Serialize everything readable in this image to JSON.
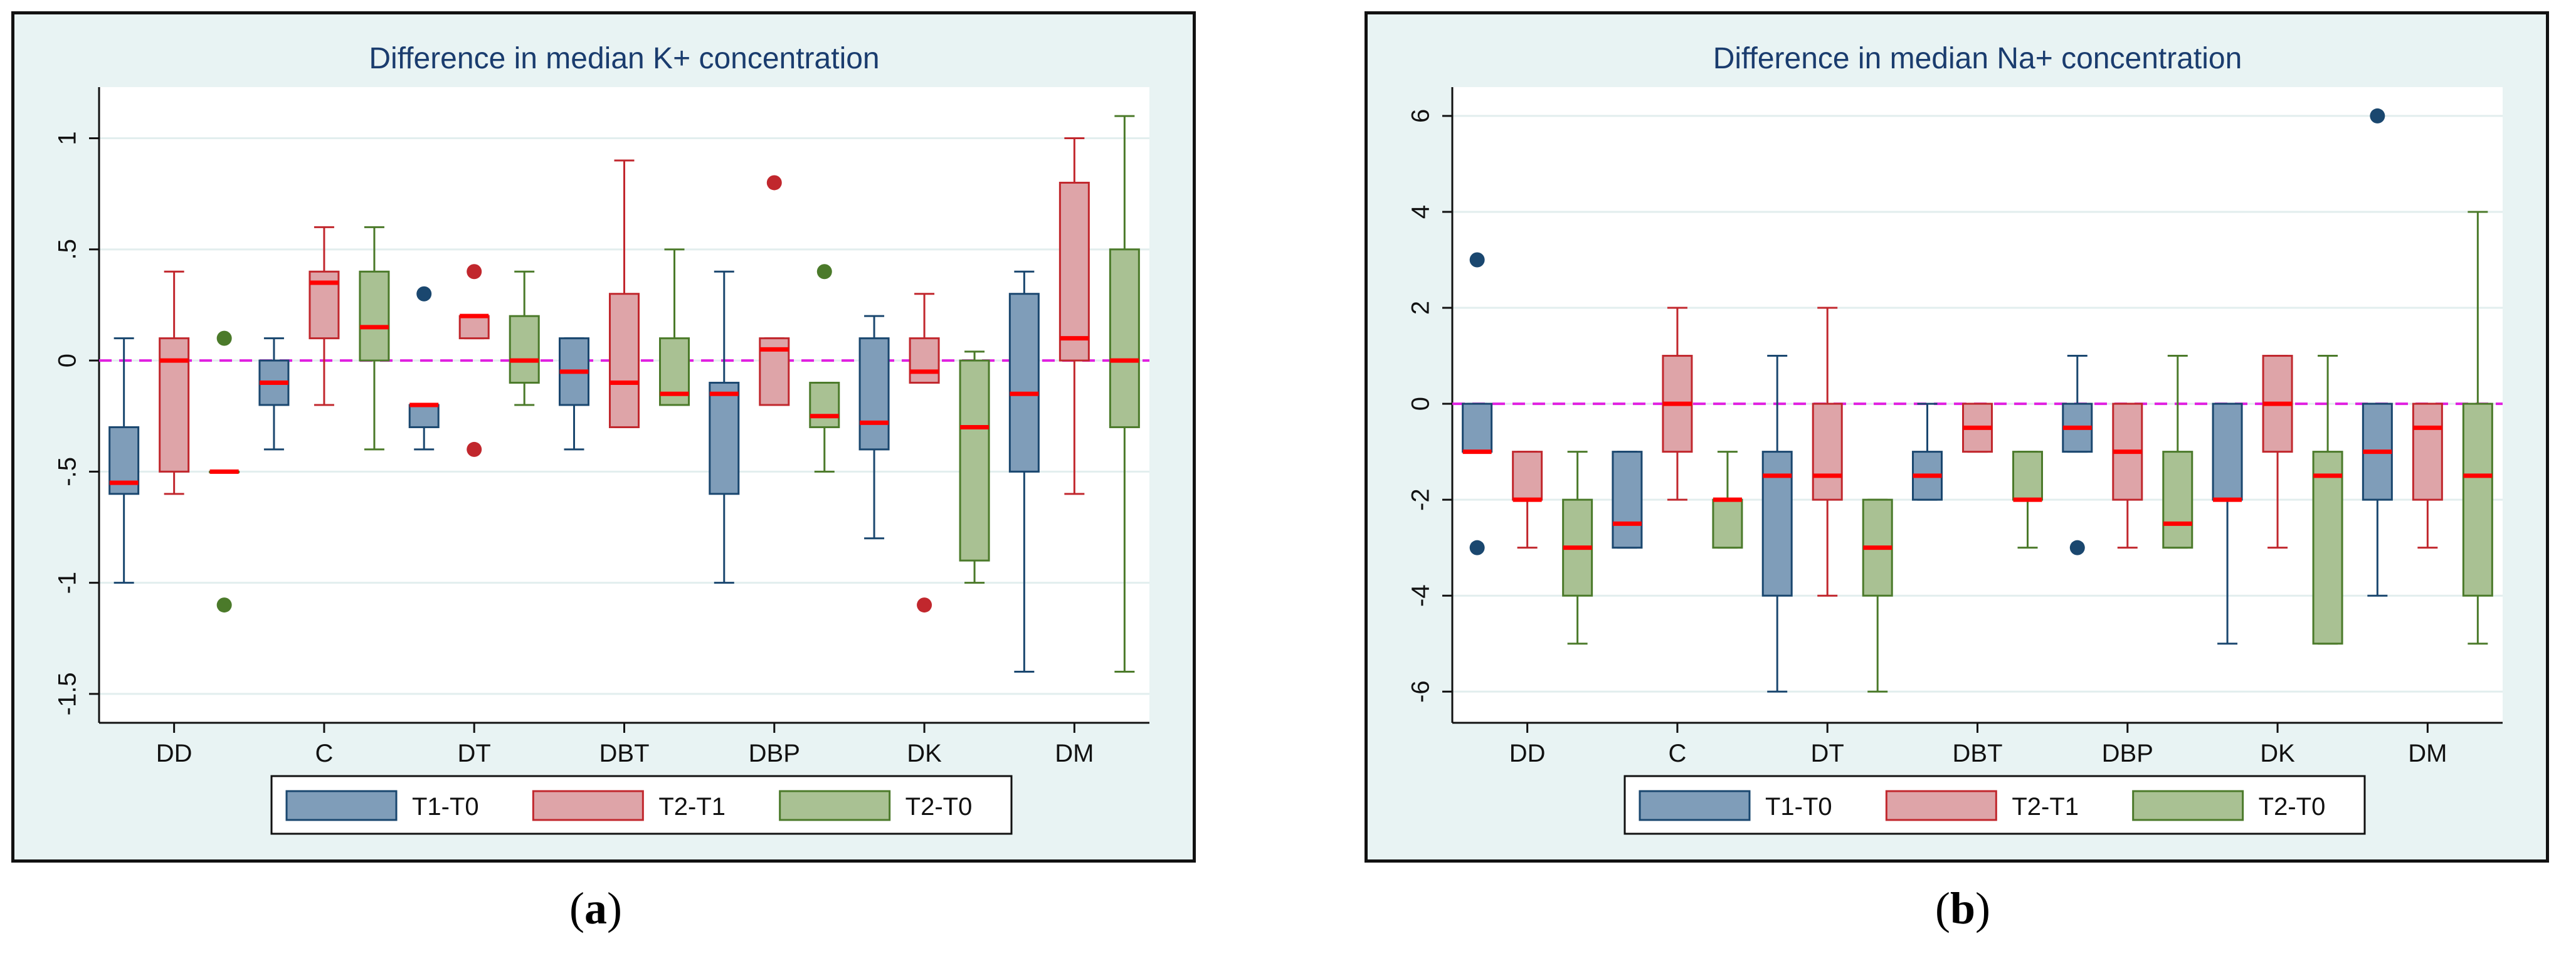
{
  "colors": {
    "T1-T0": {
      "fill": "#7f9db9",
      "stroke": "#1a476f"
    },
    "T2-T1": {
      "fill": "#dea4a8",
      "stroke": "#c1272d"
    },
    "T2-T0": {
      "fill": "#a9c193",
      "stroke": "#4b7a2a"
    },
    "median": "#ff0000",
    "zero_line": "#e020e0"
  },
  "captions": {
    "a": {
      "open": "(",
      "letter": "a",
      "close": ")"
    },
    "b": {
      "open": "(",
      "letter": "b",
      "close": ")"
    }
  },
  "chart_data": [
    {
      "type": "box",
      "title": "Difference in median K+ concentration",
      "categories": [
        "DD",
        "C",
        "DT",
        "DBT",
        "DBP",
        "DK",
        "DM"
      ],
      "ylim": [
        -1.63,
        1.23
      ],
      "yticks": [
        1,
        0.5,
        0,
        -0.5,
        -1,
        -1.5
      ],
      "ytick_labels": [
        "1",
        ".5",
        "0",
        "-.5",
        "-1",
        "-1.5"
      ],
      "reference_line": 0,
      "legend": [
        "T1-T0",
        "T2-T1",
        "T2-T0"
      ],
      "series": [
        {
          "name": "T1-T0",
          "boxes": [
            {
              "q1": -0.6,
              "med": -0.55,
              "q3": -0.3,
              "lo": -1.0,
              "hi": 0.1,
              "outliers": []
            },
            {
              "q1": -0.2,
              "med": -0.1,
              "q3": 0.0,
              "lo": -0.4,
              "hi": 0.1,
              "outliers": []
            },
            {
              "q1": -0.3,
              "med": -0.2,
              "q3": -0.2,
              "lo": -0.4,
              "hi": -0.2,
              "outliers": [
                0.3
              ]
            },
            {
              "q1": -0.2,
              "med": -0.05,
              "q3": 0.1,
              "lo": -0.4,
              "hi": 0.1,
              "outliers": []
            },
            {
              "q1": -0.6,
              "med": -0.15,
              "q3": -0.1,
              "lo": -1.0,
              "hi": 0.4,
              "outliers": []
            },
            {
              "q1": -0.4,
              "med": -0.28,
              "q3": 0.1,
              "lo": -0.8,
              "hi": 0.2,
              "outliers": []
            },
            {
              "q1": -0.5,
              "med": -0.15,
              "q3": 0.3,
              "lo": -1.4,
              "hi": 0.4,
              "outliers": []
            }
          ]
        },
        {
          "name": "T2-T1",
          "boxes": [
            {
              "q1": -0.5,
              "med": 0.0,
              "q3": 0.1,
              "lo": -0.6,
              "hi": 0.4,
              "outliers": []
            },
            {
              "q1": 0.1,
              "med": 0.35,
              "q3": 0.4,
              "lo": -0.2,
              "hi": 0.6,
              "outliers": []
            },
            {
              "q1": 0.1,
              "med": 0.2,
              "q3": 0.2,
              "lo": 0.1,
              "hi": 0.2,
              "outliers": [
                0.4,
                -0.4
              ]
            },
            {
              "q1": -0.3,
              "med": -0.1,
              "q3": 0.3,
              "lo": -0.3,
              "hi": 0.9,
              "outliers": []
            },
            {
              "q1": -0.2,
              "med": 0.05,
              "q3": 0.1,
              "lo": -0.2,
              "hi": 0.1,
              "outliers": [
                0.8
              ]
            },
            {
              "q1": -0.1,
              "med": -0.05,
              "q3": 0.1,
              "lo": -0.1,
              "hi": 0.3,
              "outliers": [
                -1.1
              ]
            },
            {
              "q1": 0.0,
              "med": 0.1,
              "q3": 0.8,
              "lo": -0.6,
              "hi": 1.0,
              "outliers": []
            }
          ]
        },
        {
          "name": "T2-T0",
          "boxes": [
            {
              "q1": -0.5,
              "med": -0.5,
              "q3": -0.5,
              "lo": -0.5,
              "hi": -0.5,
              "outliers": [
                0.1,
                -1.1
              ]
            },
            {
              "q1": 0.0,
              "med": 0.15,
              "q3": 0.4,
              "lo": -0.4,
              "hi": 0.6,
              "outliers": []
            },
            {
              "q1": -0.1,
              "med": 0.0,
              "q3": 0.2,
              "lo": -0.2,
              "hi": 0.4,
              "outliers": []
            },
            {
              "q1": -0.2,
              "med": -0.15,
              "q3": 0.1,
              "lo": -0.2,
              "hi": 0.5,
              "outliers": []
            },
            {
              "q1": -0.3,
              "med": -0.25,
              "q3": -0.1,
              "lo": -0.5,
              "hi": -0.1,
              "outliers": [
                0.4
              ]
            },
            {
              "q1": -0.9,
              "med": -0.3,
              "q3": 0.0,
              "lo": -1.0,
              "hi": 0.04,
              "outliers": []
            },
            {
              "q1": -0.3,
              "med": 0.0,
              "q3": 0.5,
              "lo": -1.4,
              "hi": 1.1,
              "outliers": []
            }
          ]
        }
      ]
    },
    {
      "type": "box",
      "title": "Difference in median Na+ concentration",
      "categories": [
        "DD",
        "C",
        "DT",
        "DBT",
        "DBP",
        "DK",
        "DM"
      ],
      "ylim": [
        -6.65,
        6.6
      ],
      "yticks": [
        6,
        4,
        2,
        0,
        -2,
        -4,
        -6
      ],
      "ytick_labels": [
        "6",
        "4",
        "2",
        "0",
        "-2",
        "-4",
        "-6"
      ],
      "reference_line": 0,
      "legend": [
        "T1-T0",
        "T2-T1",
        "T2-T0"
      ],
      "series": [
        {
          "name": "T1-T0",
          "boxes": [
            {
              "q1": -1,
              "med": -1,
              "q3": 0,
              "lo": -1,
              "hi": 0,
              "outliers": [
                3,
                -3
              ]
            },
            {
              "q1": -3,
              "med": -2.5,
              "q3": -1,
              "lo": -3,
              "hi": -1,
              "outliers": []
            },
            {
              "q1": -4,
              "med": -1.5,
              "q3": -1,
              "lo": -6,
              "hi": 1,
              "outliers": []
            },
            {
              "q1": -2,
              "med": -1.5,
              "q3": -1,
              "lo": -2,
              "hi": 0,
              "outliers": []
            },
            {
              "q1": -1,
              "med": -0.5,
              "q3": 0,
              "lo": -1,
              "hi": 1,
              "outliers": [
                -3
              ]
            },
            {
              "q1": -2,
              "med": -2,
              "q3": 0,
              "lo": -5,
              "hi": 0,
              "outliers": []
            },
            {
              "q1": -2,
              "med": -1,
              "q3": 0,
              "lo": -4,
              "hi": 0,
              "outliers": [
                6
              ]
            }
          ]
        },
        {
          "name": "T2-T1",
          "boxes": [
            {
              "q1": -2,
              "med": -2,
              "q3": -1,
              "lo": -3,
              "hi": -1,
              "outliers": []
            },
            {
              "q1": -1,
              "med": 0,
              "q3": 1,
              "lo": -2,
              "hi": 2,
              "outliers": []
            },
            {
              "q1": -2,
              "med": -1.5,
              "q3": 0,
              "lo": -4,
              "hi": 2,
              "outliers": []
            },
            {
              "q1": -1,
              "med": -0.5,
              "q3": 0,
              "lo": -1,
              "hi": 0,
              "outliers": []
            },
            {
              "q1": -2,
              "med": -1,
              "q3": 0,
              "lo": -3,
              "hi": 0,
              "outliers": []
            },
            {
              "q1": -1,
              "med": 0,
              "q3": 1,
              "lo": -3,
              "hi": 1,
              "outliers": []
            },
            {
              "q1": -2,
              "med": -0.5,
              "q3": 0,
              "lo": -3,
              "hi": 0,
              "outliers": []
            }
          ]
        },
        {
          "name": "T2-T0",
          "boxes": [
            {
              "q1": -4,
              "med": -3,
              "q3": -2,
              "lo": -5,
              "hi": -1,
              "outliers": []
            },
            {
              "q1": -3,
              "med": -2,
              "q3": -2,
              "lo": -3,
              "hi": -1,
              "outliers": []
            },
            {
              "q1": -4,
              "med": -3,
              "q3": -2,
              "lo": -6,
              "hi": -2,
              "outliers": []
            },
            {
              "q1": -2,
              "med": -2,
              "q3": -1,
              "lo": -3,
              "hi": -1,
              "outliers": []
            },
            {
              "q1": -3,
              "med": -2.5,
              "q3": -1,
              "lo": -3,
              "hi": 1,
              "outliers": []
            },
            {
              "q1": -5,
              "med": -1.5,
              "q3": -1,
              "lo": -5,
              "hi": 1,
              "outliers": []
            },
            {
              "q1": -4,
              "med": -1.5,
              "q3": 0,
              "lo": -5,
              "hi": 4,
              "outliers": []
            }
          ]
        }
      ]
    }
  ]
}
